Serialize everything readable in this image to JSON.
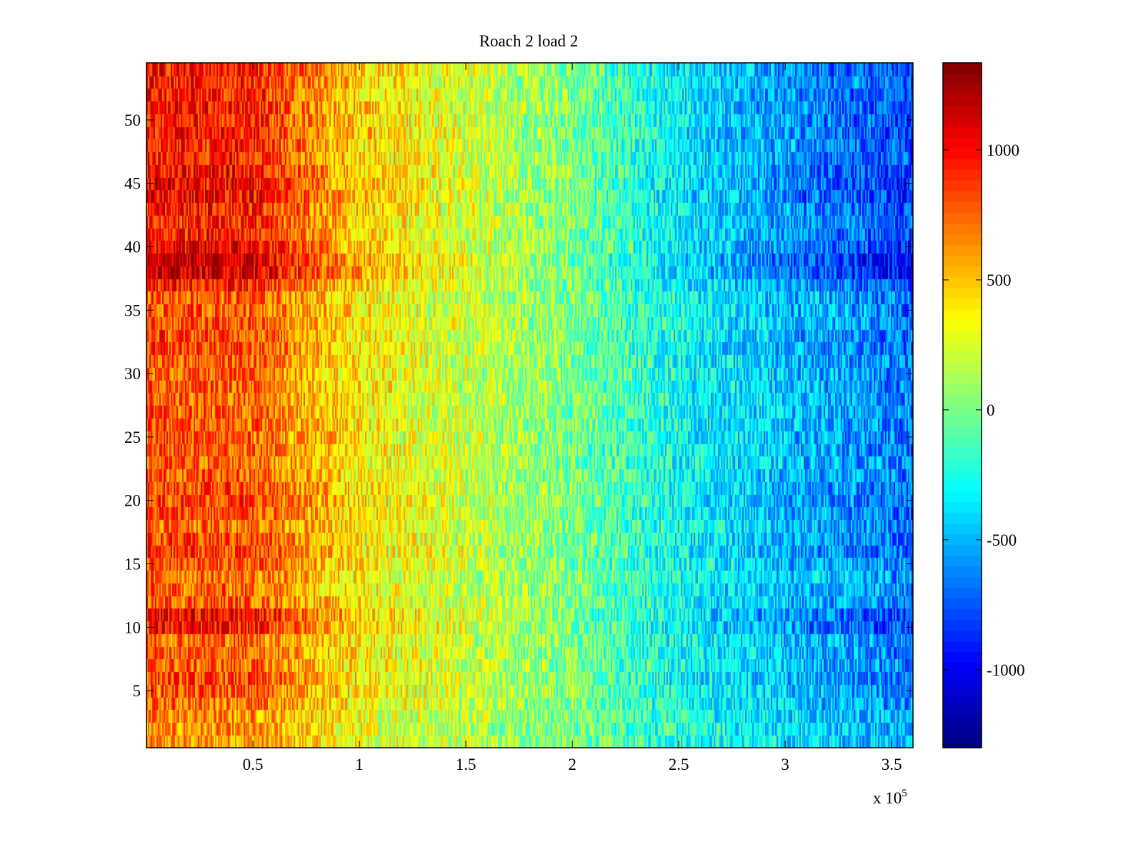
{
  "chart_data": {
    "type": "heatmap",
    "title": "Roach 2 load 2",
    "xlabel": "",
    "ylabel": "",
    "x_multiplier_label": "x 10",
    "x_multiplier_exponent": "5",
    "xlim": [
      0,
      360000
    ],
    "ylim": [
      0.5,
      54.5
    ],
    "rows": 54,
    "columns": 536,
    "x_ticks": [
      {
        "value": 50000,
        "label": "0.5"
      },
      {
        "value": 100000,
        "label": "1"
      },
      {
        "value": 150000,
        "label": "1.5"
      },
      {
        "value": 200000,
        "label": "2"
      },
      {
        "value": 250000,
        "label": "2.5"
      },
      {
        "value": 300000,
        "label": "3"
      },
      {
        "value": 350000,
        "label": "3.5"
      }
    ],
    "y_ticks": [
      {
        "value": 5,
        "label": "5"
      },
      {
        "value": 10,
        "label": "10"
      },
      {
        "value": 15,
        "label": "15"
      },
      {
        "value": 20,
        "label": "20"
      },
      {
        "value": 25,
        "label": "25"
      },
      {
        "value": 30,
        "label": "30"
      },
      {
        "value": 35,
        "label": "35"
      },
      {
        "value": 40,
        "label": "40"
      },
      {
        "value": 45,
        "label": "45"
      },
      {
        "value": 50,
        "label": "50"
      }
    ],
    "colormap": "jet",
    "clim": [
      -1300,
      1335
    ],
    "colorbar_ticks": [
      {
        "value": 1000,
        "label": "1000"
      },
      {
        "value": 500,
        "label": "500"
      },
      {
        "value": 0,
        "label": "0"
      },
      {
        "value": -500,
        "label": "-500"
      },
      {
        "value": -1000,
        "label": "-1000"
      }
    ],
    "column_trend": {
      "x": [
        0,
        50000,
        100000,
        150000,
        200000,
        250000,
        300000,
        360000
      ],
      "mean_value": [
        720,
        700,
        350,
        180,
        0,
        -250,
        -430,
        -600
      ]
    },
    "row_contrast": [
      -0.15,
      -0.15,
      -0.1,
      0,
      0.1,
      0.15,
      0.05,
      0.1,
      0.05,
      0.35,
      0.4,
      0.1,
      0.05,
      0,
      0.1,
      0.2,
      0.15,
      0.05,
      0.15,
      0.2,
      0.15,
      0.1,
      0.05,
      0.1,
      0.1,
      0.1,
      0.05,
      0.05,
      0.1,
      0.05,
      0.1,
      0.15,
      0.15,
      0.1,
      0.1,
      0.1,
      0.3,
      0.6,
      0.65,
      0.45,
      0.3,
      0.3,
      0.35,
      0.45,
      0.45,
      0.4,
      0.3,
      0.3,
      0.35,
      0.3,
      0.35,
      0.3,
      0.3,
      0.35
    ],
    "noise_amplitude": 300
  }
}
